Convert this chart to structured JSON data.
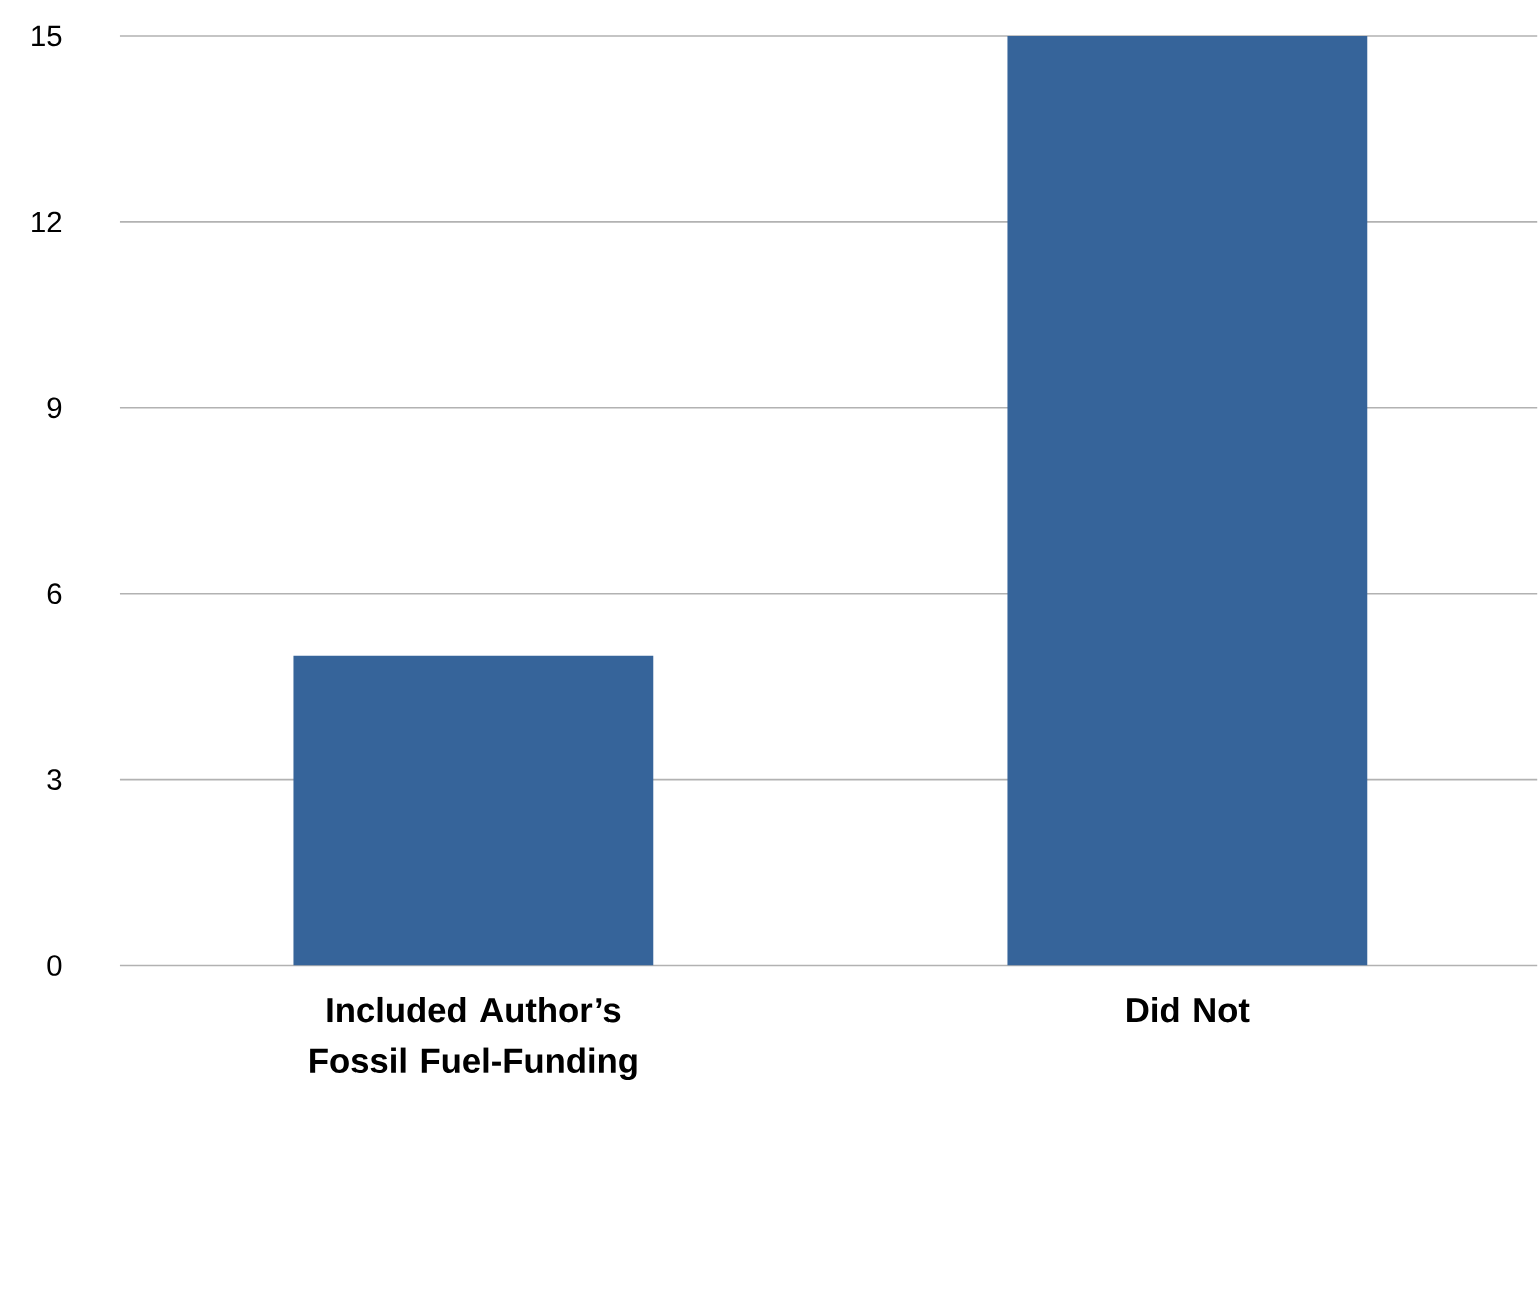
{
  "chart_data": {
    "type": "bar",
    "categories": [
      "Included Author’s Fossil Fuel-Funding",
      "Did Not"
    ],
    "values": [
      5,
      15
    ],
    "color": "#36649a",
    "ylim": [
      0,
      15
    ],
    "yticks": [
      0,
      3,
      6,
      9,
      12,
      15
    ],
    "grid": "y"
  }
}
